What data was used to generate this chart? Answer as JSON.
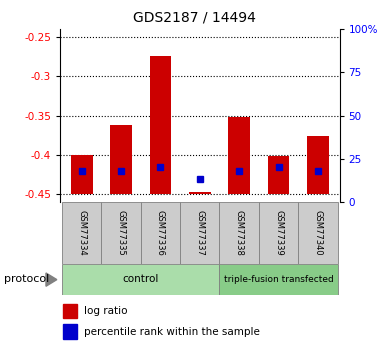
{
  "title": "GDS2187 / 14494",
  "samples": [
    "GSM77334",
    "GSM77335",
    "GSM77336",
    "GSM77337",
    "GSM77338",
    "GSM77339",
    "GSM77340"
  ],
  "log_ratio": [
    -0.4,
    -0.362,
    -0.274,
    -0.447,
    -0.352,
    -0.402,
    -0.376
  ],
  "log_ratio_base": -0.45,
  "percentile_rank": [
    18,
    18,
    20,
    13,
    18,
    20,
    18
  ],
  "groups": [
    {
      "label": "control",
      "indices": [
        0,
        1,
        2,
        3
      ]
    },
    {
      "label": "triple-fusion transfected",
      "indices": [
        4,
        5,
        6
      ]
    }
  ],
  "ylim_left": [
    -0.46,
    -0.24
  ],
  "ylim_right": [
    0,
    100
  ],
  "yticks_left": [
    -0.45,
    -0.4,
    -0.35,
    -0.3,
    -0.25
  ],
  "yticks_right": [
    0,
    25,
    50,
    75,
    100
  ],
  "yticks_right_labels": [
    "0",
    "25",
    "50",
    "75",
    "100%"
  ],
  "bar_color": "#cc0000",
  "dot_color": "#0000cc",
  "ctrl_color": "#aaddaa",
  "tf_color": "#88cc88",
  "sample_box_color": "#cccccc",
  "protocol_label": "protocol",
  "legend_log_ratio": "log ratio",
  "legend_percentile": "percentile rank within the sample"
}
